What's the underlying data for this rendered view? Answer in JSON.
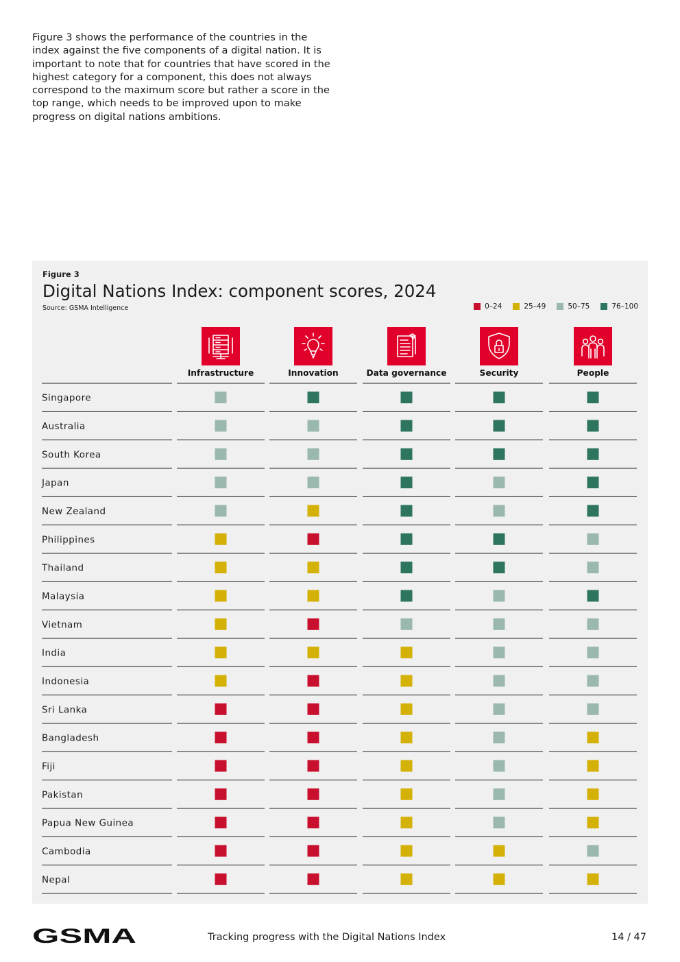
{
  "intro_text": "Figure 3 shows the performance of the countries in the index against the five components of a digital nation. It is important to note that for countries that have scored in the highest category for a component, this does not always correspond to the maximum score but rather a score in the top range, which needs to be improved upon to make progress on digital nations ambitions.",
  "colors": {
    "low": "#c8102e",
    "mid_low": "#d4b106",
    "mid_high": "#9ab8ad",
    "high": "#2e7560",
    "icon_bg": "#e0002a",
    "panel": "#f0f0f0"
  },
  "footer": {
    "brand": "GSMA",
    "title": "Tracking progress with the Digital Nations Index",
    "page": "14 / 47"
  },
  "chart_data": {
    "type": "table",
    "figure_label": "Figure 3",
    "title": "Digital Nations Index: component scores, 2024",
    "source": "Source: GSMA Intelligence",
    "legend": [
      {
        "label": "0–24",
        "key": "low"
      },
      {
        "label": "25–49",
        "key": "mid_low"
      },
      {
        "label": "50–75",
        "key": "mid_high"
      },
      {
        "label": "76–100",
        "key": "high"
      }
    ],
    "columns": [
      {
        "label": "Infrastructure",
        "icon": "server-rack-icon"
      },
      {
        "label": "Innovation",
        "icon": "lightbulb-pencil-icon"
      },
      {
        "label": "Data governance",
        "icon": "document-scroll-icon"
      },
      {
        "label": "Security",
        "icon": "shield-lock-icon"
      },
      {
        "label": "People",
        "icon": "people-group-icon"
      }
    ],
    "rows": [
      {
        "country": "Singapore",
        "categories": [
          "50–75",
          "76–100",
          "76–100",
          "76–100",
          "76–100"
        ]
      },
      {
        "country": "Australia",
        "categories": [
          "50–75",
          "50–75",
          "76–100",
          "76–100",
          "76–100"
        ]
      },
      {
        "country": "South Korea",
        "categories": [
          "50–75",
          "50–75",
          "76–100",
          "76–100",
          "76–100"
        ]
      },
      {
        "country": "Japan",
        "categories": [
          "50–75",
          "50–75",
          "76–100",
          "50–75",
          "76–100"
        ]
      },
      {
        "country": "New Zealand",
        "categories": [
          "50–75",
          "25–49",
          "76–100",
          "50–75",
          "76–100"
        ]
      },
      {
        "country": "Philippines",
        "categories": [
          "25–49",
          "0–24",
          "76–100",
          "76–100",
          "50–75"
        ]
      },
      {
        "country": "Thailand",
        "categories": [
          "25–49",
          "25–49",
          "76–100",
          "76–100",
          "50–75"
        ]
      },
      {
        "country": "Malaysia",
        "categories": [
          "25–49",
          "25–49",
          "76–100",
          "50–75",
          "76–100"
        ]
      },
      {
        "country": "Vietnam",
        "categories": [
          "25–49",
          "0–24",
          "50–75",
          "50–75",
          "50–75"
        ]
      },
      {
        "country": "India",
        "categories": [
          "25–49",
          "25–49",
          "25–49",
          "50–75",
          "50–75"
        ]
      },
      {
        "country": "Indonesia",
        "categories": [
          "25–49",
          "0–24",
          "25–49",
          "50–75",
          "50–75"
        ]
      },
      {
        "country": "Sri Lanka",
        "categories": [
          "0–24",
          "0–24",
          "25–49",
          "50–75",
          "50–75"
        ]
      },
      {
        "country": "Bangladesh",
        "categories": [
          "0–24",
          "0–24",
          "25–49",
          "50–75",
          "25–49"
        ]
      },
      {
        "country": "Fiji",
        "categories": [
          "0–24",
          "0–24",
          "25–49",
          "50–75",
          "25–49"
        ]
      },
      {
        "country": "Pakistan",
        "categories": [
          "0–24",
          "0–24",
          "25–49",
          "50–75",
          "25–49"
        ]
      },
      {
        "country": "Papua New Guinea",
        "categories": [
          "0–24",
          "0–24",
          "25–49",
          "50–75",
          "25–49"
        ]
      },
      {
        "country": "Cambodia",
        "categories": [
          "0–24",
          "0–24",
          "25–49",
          "25–49",
          "50–75"
        ]
      },
      {
        "country": "Nepal",
        "categories": [
          "0–24",
          "0–24",
          "25–49",
          "25–49",
          "25–49"
        ]
      }
    ]
  }
}
